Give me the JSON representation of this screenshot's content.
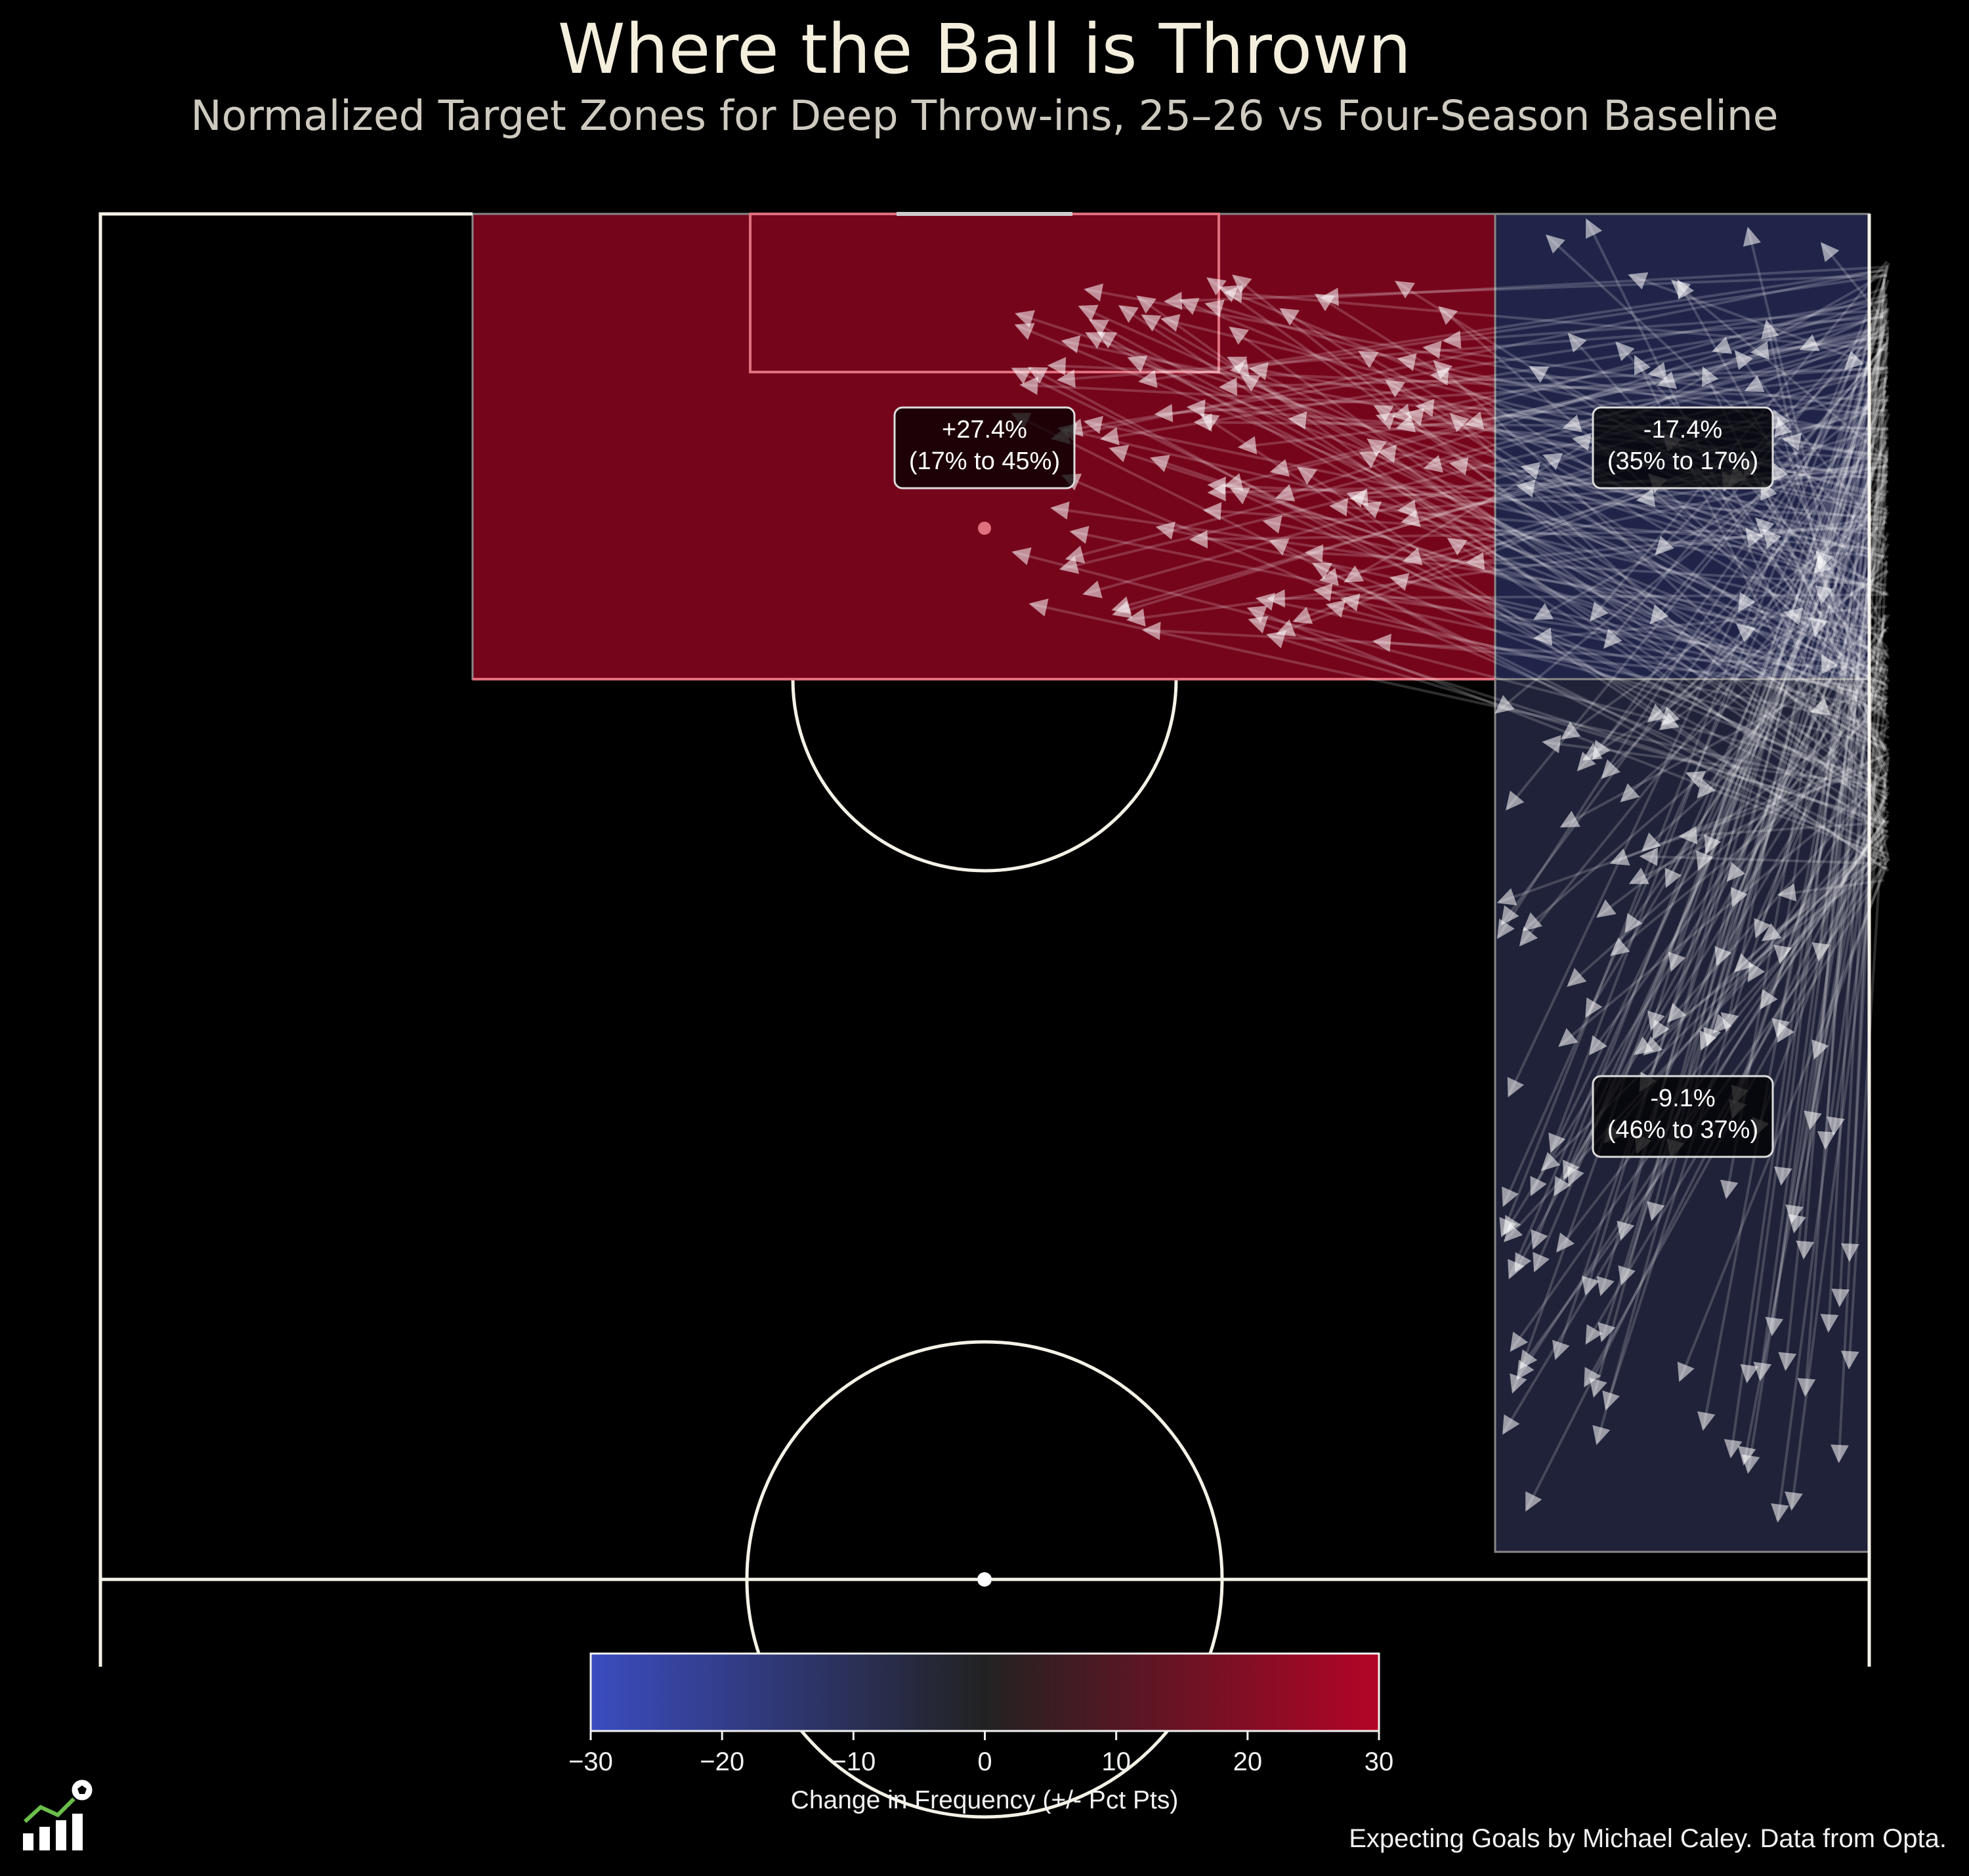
{
  "title": "Where the Ball is Thrown",
  "subtitle": "Normalized Target Zones for Deep Throw-ins, 25–26 vs Four-Season Baseline",
  "credit": "Expecting Goals by Michael Caley. Data from Opta.",
  "chart_data": {
    "type": "heatmap",
    "description_zones": [
      {
        "zone": "penalty-area",
        "change_label": "+27.4%",
        "range_label": "(17% to 45%)",
        "change": 27.4,
        "baseline": 17,
        "current": 45,
        "color": "#75051b"
      },
      {
        "zone": "wide-box-edge",
        "change_label": "-17.4%",
        "range_label": "(35% to 17%)",
        "change": -17.4,
        "baseline": 35,
        "current": 17,
        "color": "#202448"
      },
      {
        "zone": "wide-channel",
        "change_label": "-9.1%",
        "range_label": "(46% to 37%)",
        "change": -9.1,
        "baseline": 46,
        "current": 37,
        "color": "#1f2238"
      }
    ],
    "colorbar": {
      "label": "Change in Frequency (+/- Pct Pts)",
      "ticks": [
        "−30",
        "−20",
        "−10",
        "0",
        "10",
        "20",
        "30"
      ],
      "range": [
        -30,
        30
      ],
      "colors": [
        "#3b4cc0",
        "#222222",
        "#b40426"
      ]
    },
    "throw_arrows": {
      "count": 300,
      "color": "#ffffff"
    }
  }
}
